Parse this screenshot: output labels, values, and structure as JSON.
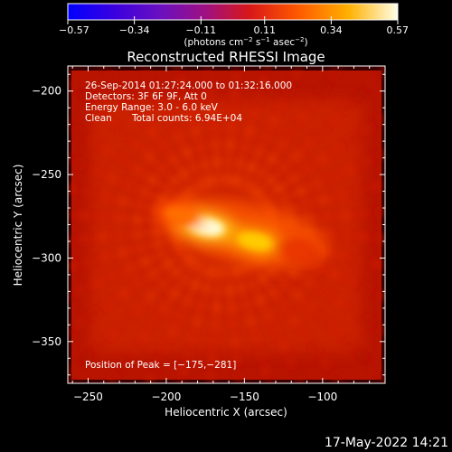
{
  "chart_data": {
    "type": "heatmap",
    "title": "Reconstructed RHESSI Image",
    "xlabel": "Heliocentric X (arcsec)",
    "ylabel": "Heliocentric Y (arcsec)",
    "xlim": [
      -263,
      -60
    ],
    "ylim": [
      -375,
      -185
    ],
    "xticks": [
      -250,
      -200,
      -150,
      -100
    ],
    "xtick_labels": [
      "−250",
      "−200",
      "−150",
      "−100"
    ],
    "yticks": [
      -200,
      -250,
      -300,
      -350
    ],
    "ytick_labels": [
      "−200",
      "−250",
      "−300",
      "−350"
    ],
    "colorbar": {
      "min": -0.57,
      "max": 0.57,
      "ticks": [
        -0.57,
        -0.34,
        -0.11,
        0.11,
        0.34,
        0.57
      ],
      "tick_labels": [
        "−0.57",
        "−0.34",
        "−0.11",
        "0.11",
        "0.34",
        "0.57"
      ],
      "units_parts": [
        "(photons cm",
        "−2",
        " s",
        "−1",
        " asec",
        "−2",
        ")"
      ]
    },
    "annotations": {
      "time": "26-Sep-2014 01:27:24.000 to 01:32:16.000",
      "detectors": "Detectors: 3F 6F 9F, Att 0",
      "energy": "Energy Range: 3.0 - 6.0 keV",
      "clean_label": "Clean",
      "total_counts": "Total counts: 6.94E+04",
      "peak": "Position of Peak = [−175,−281]"
    },
    "peak_position": [
      -175,
      -281
    ],
    "sources": [
      {
        "x": -175,
        "y": -281,
        "intensity": 0.57
      },
      {
        "x": -143,
        "y": -290,
        "intensity": 0.5
      },
      {
        "x": -192,
        "y": -274,
        "intensity": 0.38
      },
      {
        "x": -115,
        "y": -296,
        "intensity": 0.3
      }
    ]
  },
  "footer": {
    "timestamp": "17-May-2022 14:21"
  }
}
